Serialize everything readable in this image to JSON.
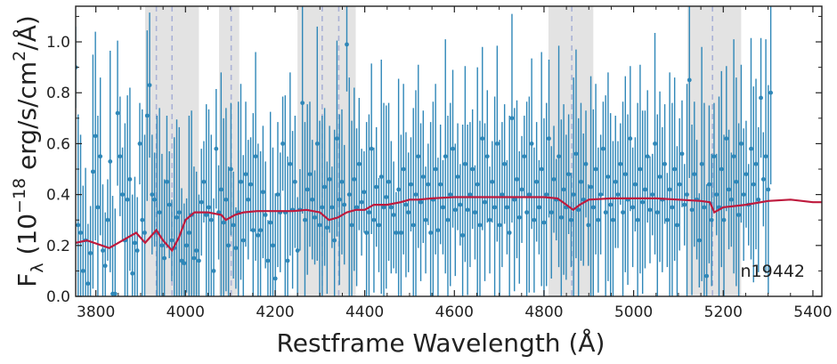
{
  "chart_data": {
    "type": "scatter",
    "title": "",
    "xlabel": "Restframe Wavelength (Å)",
    "ylabel_main": "F",
    "ylabel_sub": "λ",
    "ylabel_rest_a": " (10",
    "ylabel_sup_exp": "−18",
    "ylabel_rest_b": " erg/s/cm",
    "ylabel_sup_2": "2",
    "ylabel_rest_c": "/Å)",
    "annotation": "n19442",
    "xlim": [
      3755,
      5420
    ],
    "ylim": [
      0.0,
      1.14
    ],
    "xticks": [
      3800,
      4000,
      4200,
      4400,
      4600,
      4800,
      5000,
      5200,
      5400
    ],
    "xtick_labels": [
      "3800",
      "4000",
      "4200",
      "4400",
      "4600",
      "4800",
      "5000",
      "5200",
      "5400"
    ],
    "yticks": [
      0.0,
      0.2,
      0.4,
      0.6,
      0.8,
      1.0
    ],
    "ytick_labels": [
      "0.0",
      "0.2",
      "0.4",
      "0.6",
      "0.8",
      "1.0"
    ],
    "grid": false,
    "shaded_regions": [
      [
        3910,
        4030
      ],
      [
        4075,
        4120
      ],
      [
        4250,
        4380
      ],
      [
        4810,
        4910
      ],
      [
        5120,
        5240
      ]
    ],
    "line_markers": [
      3935,
      3970,
      4102,
      4305,
      4342,
      4862,
      5176
    ],
    "model": {
      "x": [
        3755,
        3780,
        3830,
        3860,
        3890,
        3910,
        3935,
        3950,
        3970,
        3985,
        4000,
        4020,
        4050,
        4080,
        4090,
        4100,
        4110,
        4130,
        4160,
        4200,
        4240,
        4270,
        4300,
        4320,
        4340,
        4360,
        4380,
        4400,
        4420,
        4450,
        4480,
        4500,
        4520,
        4550,
        4600,
        4650,
        4700,
        4750,
        4800,
        4830,
        4850,
        4865,
        4880,
        4900,
        4950,
        5000,
        5050,
        5100,
        5150,
        5170,
        5180,
        5200,
        5250,
        5300,
        5350,
        5400,
        5420
      ],
      "y": [
        0.21,
        0.22,
        0.19,
        0.22,
        0.25,
        0.21,
        0.26,
        0.22,
        0.18,
        0.23,
        0.3,
        0.33,
        0.33,
        0.32,
        0.3,
        0.31,
        0.32,
        0.33,
        0.335,
        0.335,
        0.335,
        0.34,
        0.33,
        0.3,
        0.31,
        0.33,
        0.34,
        0.34,
        0.36,
        0.36,
        0.37,
        0.38,
        0.38,
        0.385,
        0.39,
        0.39,
        0.39,
        0.39,
        0.39,
        0.385,
        0.36,
        0.34,
        0.36,
        0.38,
        0.385,
        0.385,
        0.385,
        0.38,
        0.375,
        0.37,
        0.33,
        0.35,
        0.36,
        0.375,
        0.38,
        0.37,
        0.37
      ]
    },
    "data_points": {
      "x_start": 3755,
      "x_step": 5.5,
      "y": [
        0.9,
        0.28,
        0.25,
        0.1,
        0.22,
        0.05,
        0.17,
        0.49,
        0.63,
        0.35,
        0.55,
        0.18,
        0.12,
        0.3,
        0.53,
        0.01,
        0.01,
        0.72,
        0.55,
        0.4,
        0.22,
        0.38,
        0.46,
        0.09,
        0.21,
        0.18,
        0.6,
        0.3,
        0.25,
        0.71,
        0.83,
        0.4,
        0.38,
        0.25,
        0.33,
        0.2,
        0.15,
        0.45,
        0.36,
        0.22,
        0.19,
        0.31,
        0.33,
        0.14,
        0.13,
        0.2,
        0.25,
        0.32,
        0.15,
        0.18,
        0.14,
        0.37,
        0.45,
        0.32,
        0.35,
        0.3,
        0.1,
        0.58,
        0.33,
        0.42,
        0.29,
        0.38,
        0.2,
        0.5,
        0.28,
        0.19,
        0.33,
        0.45,
        0.22,
        0.48,
        0.38,
        0.44,
        0.26,
        0.55,
        0.24,
        0.26,
        0.41,
        0.32,
        0.14,
        0.29,
        0.2,
        0.07,
        0.4,
        0.33,
        0.6,
        0.33,
        0.14,
        0.52,
        0.34,
        0.45,
        0.18,
        0.34,
        0.76,
        0.3,
        0.42,
        0.48,
        0.38,
        0.31,
        0.6,
        0.28,
        0.35,
        0.43,
        0.27,
        0.46,
        0.35,
        0.22,
        0.62,
        0.38,
        0.45,
        0.36,
        0.99,
        0.4,
        0.28,
        0.46,
        0.35,
        0.52,
        0.37,
        0.41,
        0.25,
        0.33,
        0.58,
        0.3,
        0.43,
        0.28,
        0.47,
        0.35,
        0.39,
        0.45,
        0.35,
        0.32,
        0.25,
        0.42,
        0.25,
        0.5,
        0.36,
        0.33,
        0.44,
        0.28,
        0.4,
        0.55,
        0.37,
        0.47,
        0.3,
        0.44,
        0.25,
        0.38,
        0.5,
        0.26,
        0.44,
        0.35,
        0.55,
        0.3,
        0.4,
        0.58,
        0.34,
        0.47,
        0.36,
        0.24,
        0.52,
        0.34,
        0.4,
        0.5,
        0.33,
        0.44,
        0.28,
        0.62,
        0.37,
        0.55,
        0.3,
        0.45,
        0.35,
        0.6,
        0.28,
        0.4,
        0.52,
        0.35,
        0.25,
        0.7,
        0.38,
        0.46,
        0.31,
        0.42,
        0.55,
        0.33,
        0.4,
        0.6,
        0.3,
        0.45,
        0.35,
        0.5,
        0.29,
        0.4,
        0.62,
        0.33,
        0.46,
        0.38,
        0.55,
        0.31,
        0.42,
        0.35,
        0.48,
        0.3,
        0.4,
        0.56,
        0.34,
        0.45,
        0.38,
        0.52,
        0.28,
        0.43,
        0.35,
        0.5,
        0.3,
        0.4,
        0.58,
        0.33,
        0.47,
        0.36,
        0.3,
        0.45,
        0.4,
        0.52,
        0.33,
        0.48,
        0.38,
        0.62,
        0.35,
        0.44,
        0.3,
        0.5,
        0.37,
        0.42,
        0.55,
        0.34,
        0.4,
        0.6,
        0.33,
        0.47,
        0.38,
        0.52,
        0.3,
        0.42,
        0.35,
        0.5,
        0.28,
        0.44,
        0.56,
        0.36,
        0.4,
        0.85,
        0.34,
        0.48,
        0.38,
        0.22,
        0.52,
        0.35,
        0.08,
        0.44,
        0.3,
        0.55,
        0.4,
        0.35,
        0.5,
        0.3,
        0.62,
        0.42,
        0.38,
        0.55,
        0.45,
        0.32,
        0.6,
        0.4,
        0.48,
        0.36,
        0.58,
        0.44,
        0.52,
        0.38,
        0.78,
        0.46,
        0.55,
        0.42,
        0.8
      ]
    },
    "colors": {
      "data": "#2f87b8",
      "model": "#be1a3d",
      "shade": "#e3e3e3",
      "marker_line": "#aab2d6",
      "axis": "#222222"
    }
  }
}
